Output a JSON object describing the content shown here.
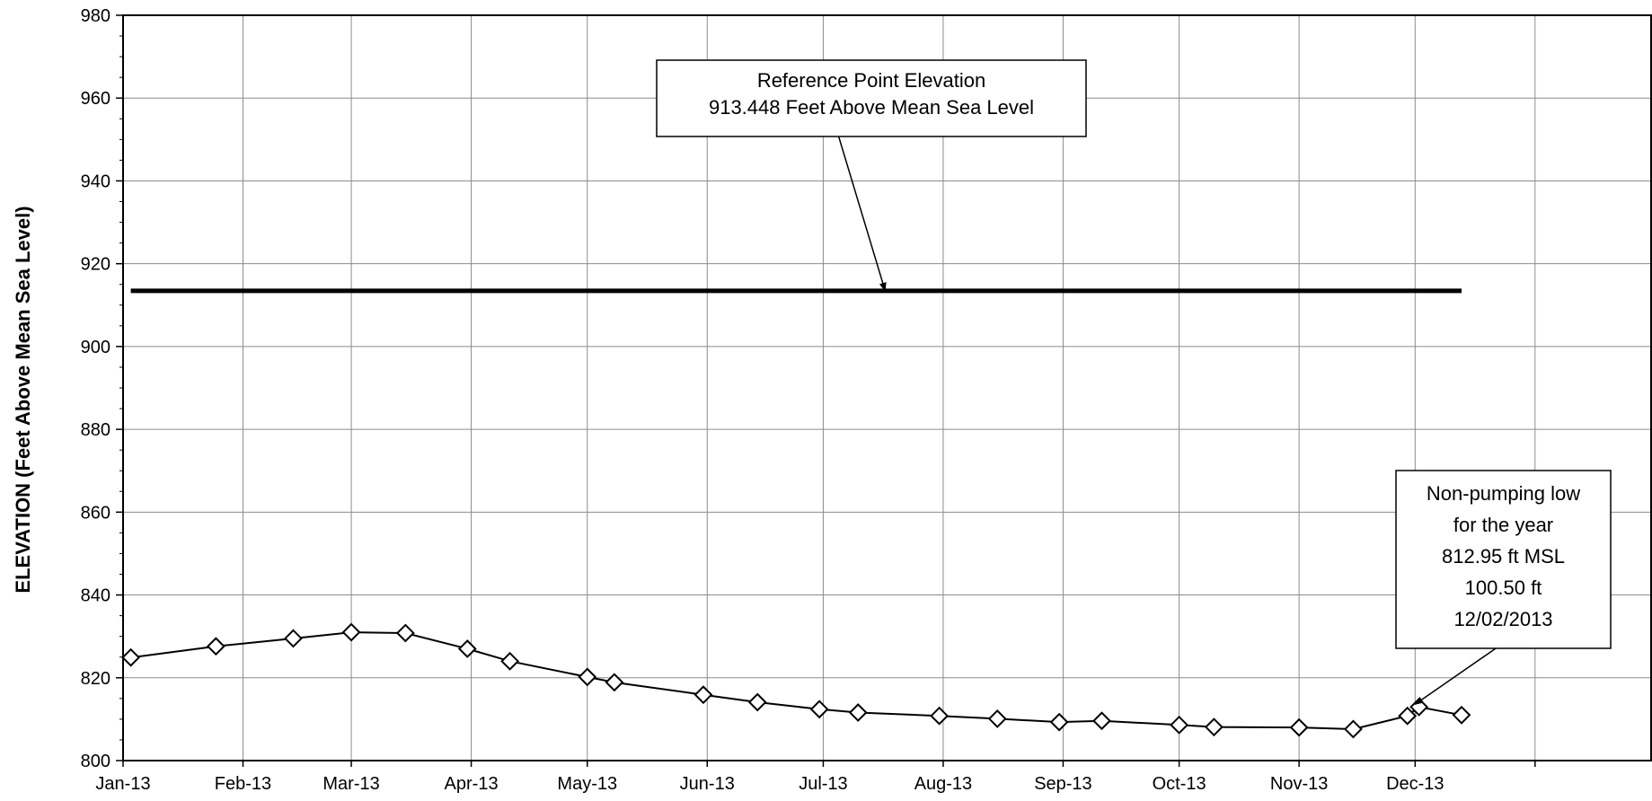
{
  "chart_data": {
    "type": "line",
    "title": "",
    "xlabel": "",
    "ylabel": "ELEVATION (Feet Above Mean Sea Level)",
    "ylim": [
      800,
      980
    ],
    "yticks": [
      800,
      820,
      840,
      860,
      880,
      900,
      920,
      940,
      960,
      980
    ],
    "xlim": [
      "2013-01-01",
      "2014-01-31"
    ],
    "xticks": [
      {
        "date": "2013-01-01",
        "label": "Jan-13"
      },
      {
        "date": "2013-02-01",
        "label": "Feb-13"
      },
      {
        "date": "2013-03-01",
        "label": "Mar-13"
      },
      {
        "date": "2013-04-01",
        "label": "Apr-13"
      },
      {
        "date": "2013-05-01",
        "label": "May-13"
      },
      {
        "date": "2013-06-01",
        "label": "Jun-13"
      },
      {
        "date": "2013-07-01",
        "label": "Jul-13"
      },
      {
        "date": "2013-08-01",
        "label": "Aug-13"
      },
      {
        "date": "2013-09-01",
        "label": "Sep-13"
      },
      {
        "date": "2013-10-01",
        "label": "Oct-13"
      },
      {
        "date": "2013-11-01",
        "label": "Nov-13"
      },
      {
        "date": "2013-12-01",
        "label": "Dec-13"
      },
      {
        "date": "2014-01-01",
        "label": ""
      }
    ],
    "grid": true,
    "series": [
      {
        "marker": "diamond",
        "color": "#000000",
        "points": [
          {
            "x": "2013-01-03",
            "y": 824.9
          },
          {
            "x": "2013-01-25",
            "y": 827.6
          },
          {
            "x": "2013-02-14",
            "y": 829.5
          },
          {
            "x": "2013-03-01",
            "y": 831.0
          },
          {
            "x": "2013-03-15",
            "y": 830.8
          },
          {
            "x": "2013-03-31",
            "y": 827.0
          },
          {
            "x": "2013-04-11",
            "y": 824.0
          },
          {
            "x": "2013-05-01",
            "y": 820.2
          },
          {
            "x": "2013-05-08",
            "y": 818.9
          },
          {
            "x": "2013-05-31",
            "y": 815.9
          },
          {
            "x": "2013-06-14",
            "y": 814.1
          },
          {
            "x": "2013-06-30",
            "y": 812.4
          },
          {
            "x": "2013-07-10",
            "y": 811.6
          },
          {
            "x": "2013-07-31",
            "y": 810.8
          },
          {
            "x": "2013-08-15",
            "y": 810.1
          },
          {
            "x": "2013-08-31",
            "y": 809.3
          },
          {
            "x": "2013-09-11",
            "y": 809.6
          },
          {
            "x": "2013-10-01",
            "y": 808.6
          },
          {
            "x": "2013-10-10",
            "y": 808.1
          },
          {
            "x": "2013-11-01",
            "y": 808.0
          },
          {
            "x": "2013-11-15",
            "y": 807.6
          },
          {
            "x": "2013-11-29",
            "y": 810.8
          },
          {
            "x": "2013-12-02",
            "y": 812.95
          },
          {
            "x": "2013-12-13",
            "y": 811.0
          }
        ]
      }
    ],
    "reference_line": {
      "y": 913.448,
      "x_start": "2013-01-03",
      "x_end": "2013-12-13",
      "color": "#000000"
    },
    "annotations": [
      {
        "id": "reference",
        "lines": [
          "Reference Point Elevation",
          "913.448 Feet Above Mean Sea Level"
        ],
        "position": "top-center",
        "arrow_to": {
          "x": "2013-07-17",
          "y": 913.448
        }
      },
      {
        "id": "low",
        "lines": [
          "Non-pumping low",
          "for the year",
          "812.95 ft MSL",
          "100.50 ft",
          "12/02/2013"
        ],
        "position": "bottom-right",
        "arrow_to": {
          "x": "2013-12-01",
          "y": 813.6
        }
      }
    ]
  }
}
